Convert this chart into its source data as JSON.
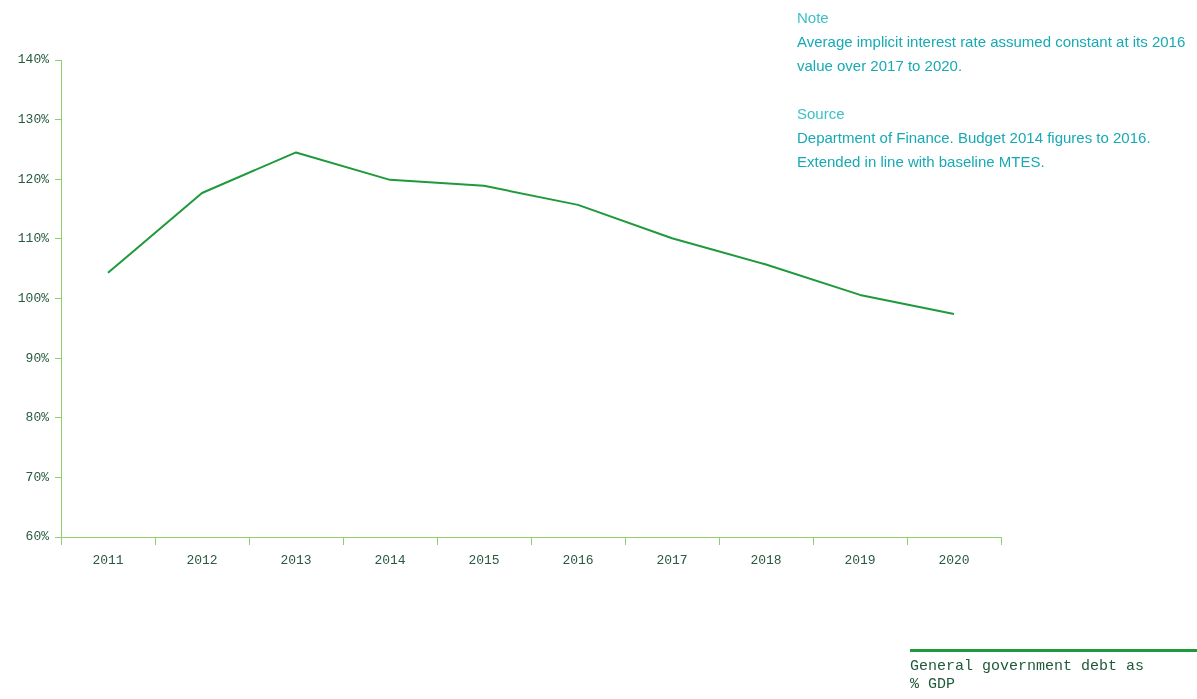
{
  "chart_data": {
    "type": "line",
    "categories": [
      "2011",
      "2012",
      "2013",
      "2014",
      "2015",
      "2016",
      "2017",
      "2018",
      "2019",
      "2020"
    ],
    "series": [
      {
        "name": "General government debt as % GDP",
        "color": "#1e9a3c",
        "values": [
          104.3,
          117.7,
          124.5,
          119.9,
          118.9,
          115.7,
          110.1,
          105.7,
          100.6,
          97.4
        ]
      }
    ],
    "ylim": [
      60,
      140
    ],
    "yticks": [
      {
        "value": 60,
        "label": "60%"
      },
      {
        "value": 70,
        "label": "70%"
      },
      {
        "value": 80,
        "label": "80%"
      },
      {
        "value": 90,
        "label": "90%"
      },
      {
        "value": 100,
        "label": "100%"
      },
      {
        "value": 110,
        "label": "110%"
      },
      {
        "value": 120,
        "label": "120%"
      },
      {
        "value": 130,
        "label": "130%"
      },
      {
        "value": 140,
        "label": "140%"
      }
    ],
    "grid": false,
    "legend": "bottom right",
    "marker": "none",
    "line_style": "solid",
    "annotations": [
      "Note",
      "Average implicit interest rate assumed constant at its 2016 value over 2017 to 2020.",
      "Source",
      "Department of Finance. Budget 2014 figures to 2016. Extended in line with baseline MTES."
    ]
  }
}
